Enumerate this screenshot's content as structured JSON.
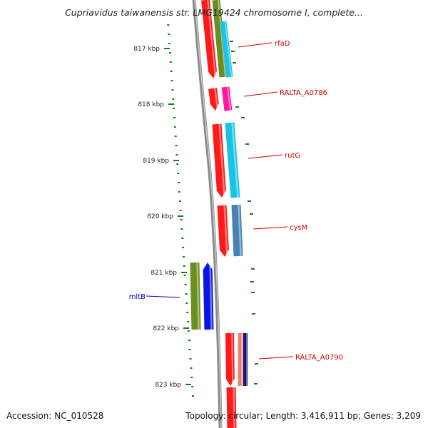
{
  "title": "Cupriavidus taiwanensis str. LMG19424 chromosome I, complete...",
  "accession": "Accession: NC_010528",
  "topology": "Topology: circular; Length: 3,416,911 bp; Genes: 3,209",
  "scale_labels": [
    "817 kbp",
    "818 kbp",
    "819 kbp",
    "820 kbp",
    "821 kbp",
    "822 kbp",
    "823 kbp"
  ],
  "genes": [
    {
      "label": "rfaD",
      "color": "#cc0000"
    },
    {
      "label": "RALTA_A0786",
      "color": "#cc0000"
    },
    {
      "label": "rutG",
      "color": "#cc0000"
    },
    {
      "label": "cysM",
      "color": "#cc0000"
    },
    {
      "label": "mltB",
      "color": "#0000cc"
    },
    {
      "label": "RALTA_A0790",
      "color": "#cc0000"
    }
  ],
  "colors": {
    "backbone": "#8a8a8a",
    "tick": "#1a7a1a",
    "red": "#ff1a1a",
    "olive": "#6b8e23",
    "cyan": "#19c3e6",
    "magenta": "#ff1aa0",
    "steel": "#4682b4",
    "blue": "#0a14e6",
    "salmon": "#f08070",
    "navy": "#14147a"
  }
}
